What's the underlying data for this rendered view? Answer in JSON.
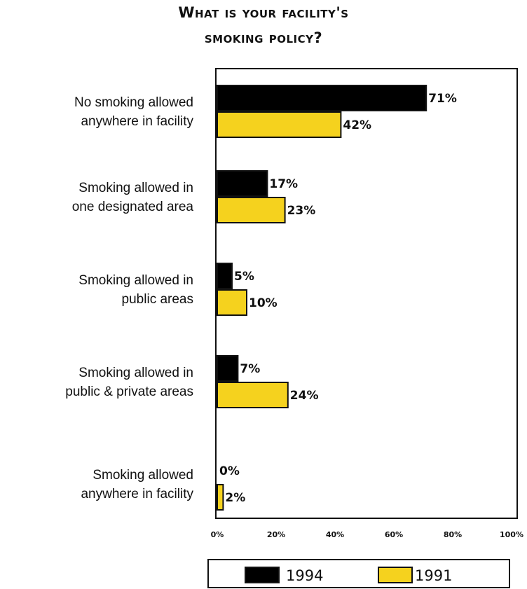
{
  "chart_data": {
    "type": "bar",
    "orientation": "horizontal",
    "title_line1": "What is your facility's",
    "title_line2": "smoking policy?",
    "categories": [
      [
        "No smoking allowed",
        "anywhere in facility"
      ],
      [
        "Smoking allowed in",
        "one designated area"
      ],
      [
        "Smoking allowed in",
        "public areas"
      ],
      [
        "Smoking allowed in",
        "public & private areas"
      ],
      [
        "Smoking allowed",
        "anywhere in facility"
      ]
    ],
    "series": [
      {
        "name": "1994",
        "color": "#000000",
        "values": [
          71,
          17,
          5,
          7,
          0
        ],
        "labels": [
          "71%",
          "17%",
          "5%",
          "7%",
          "0%"
        ]
      },
      {
        "name": "1991",
        "color": "#f5d21e",
        "values": [
          42,
          23,
          10,
          24,
          2
        ],
        "labels": [
          "42%",
          "23%",
          "10%",
          "24%",
          "2%"
        ]
      }
    ],
    "xlim": [
      0,
      100
    ],
    "xticks": [
      "0%",
      "20%",
      "40%",
      "60%",
      "80%",
      "100%"
    ],
    "legend_position": "bottom",
    "xlabel": "",
    "ylabel": ""
  }
}
